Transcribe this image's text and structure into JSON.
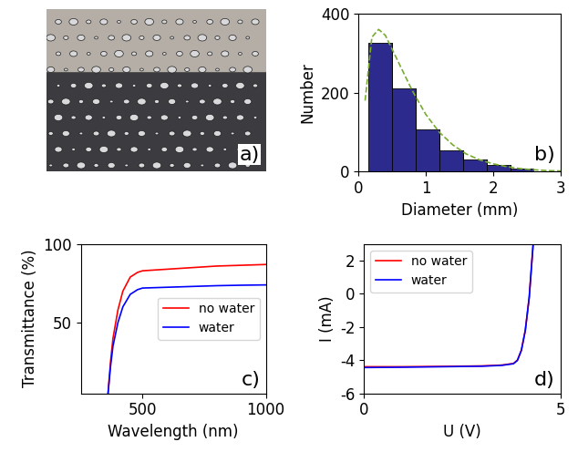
{
  "chart_data": [
    {
      "type": "image",
      "annotation": "a)"
    },
    {
      "type": "histogram",
      "annotation": "b)",
      "x_label": "Diameter (mm)",
      "y_label": "Number",
      "bins": [
        0.15,
        0.5,
        0.85,
        1.2,
        1.55,
        1.9,
        2.25,
        2.6
      ],
      "counts": [
        325,
        210,
        108,
        55,
        30,
        18,
        8
      ],
      "color": "#2c2a8c",
      "series": [
        {
          "type": "line",
          "color": "#77ac30",
          "line_style": "dashed",
          "x": [
            0.1,
            0.2,
            0.3,
            0.4,
            0.5,
            0.6,
            0.8,
            1.0,
            1.2,
            1.4,
            1.6,
            1.8,
            2.0,
            2.2,
            2.4,
            2.6,
            2.8,
            3.0
          ],
          "values": [
            180,
            340,
            360,
            345,
            310,
            275,
            205,
            145,
            100,
            68,
            45,
            30,
            20,
            13,
            8,
            5,
            3,
            2
          ]
        }
      ],
      "xlim": [
        0,
        3
      ],
      "xticks": [
        0,
        1,
        2,
        3
      ],
      "ylim": [
        0,
        400
      ],
      "yticks": [
        0,
        200,
        400
      ]
    },
    {
      "type": "line",
      "annotation": "c)",
      "x_label": "Wavelength (nm)",
      "y_label": "Transmittance (%)",
      "legend": "center right",
      "series": [
        {
          "name": "no water",
          "color": "#ff0000",
          "x": [
            360,
            370,
            380,
            400,
            420,
            450,
            480,
            500,
            600,
            700,
            800,
            900,
            1000
          ],
          "values": [
            5,
            25,
            40,
            58,
            70,
            79,
            82,
            83,
            84,
            85,
            86,
            86.5,
            87
          ]
        },
        {
          "name": "water",
          "color": "#0000ff",
          "x": [
            360,
            370,
            380,
            400,
            420,
            450,
            480,
            500,
            600,
            700,
            800,
            900,
            1000
          ],
          "values": [
            5,
            22,
            35,
            50,
            60,
            68,
            71,
            72,
            72.5,
            73,
            73.5,
            73.8,
            74
          ]
        }
      ],
      "xlim": [
        250,
        1000
      ],
      "xticks": [
        500,
        1000
      ],
      "ylim": [
        5,
        100
      ],
      "yticks": [
        50,
        100
      ]
    },
    {
      "type": "line",
      "annotation": "d)",
      "x_label": "U (V)",
      "y_label": "I (mA)",
      "legend": "upper left",
      "series": [
        {
          "name": "no water",
          "color": "#ff0000",
          "x": [
            0,
            1,
            2,
            3,
            3.5,
            3.8,
            3.9,
            4.0,
            4.1,
            4.2,
            4.3
          ],
          "values": [
            -4.4,
            -4.4,
            -4.38,
            -4.35,
            -4.3,
            -4.2,
            -4.0,
            -3.4,
            -2.2,
            -0.2,
            3.0
          ]
        },
        {
          "name": "water",
          "color": "#0000ff",
          "x": [
            0,
            1,
            2,
            3,
            3.5,
            3.8,
            3.9,
            4.0,
            4.1,
            4.2,
            4.3
          ],
          "values": [
            -4.45,
            -4.43,
            -4.4,
            -4.37,
            -4.32,
            -4.22,
            -4.02,
            -3.42,
            -2.22,
            -0.22,
            3.0
          ]
        }
      ],
      "xlim": [
        0,
        5
      ],
      "xticks": [
        0,
        5
      ],
      "ylim": [
        -6,
        3
      ],
      "yticks": [
        -6,
        -4,
        -2,
        0,
        2
      ]
    }
  ]
}
